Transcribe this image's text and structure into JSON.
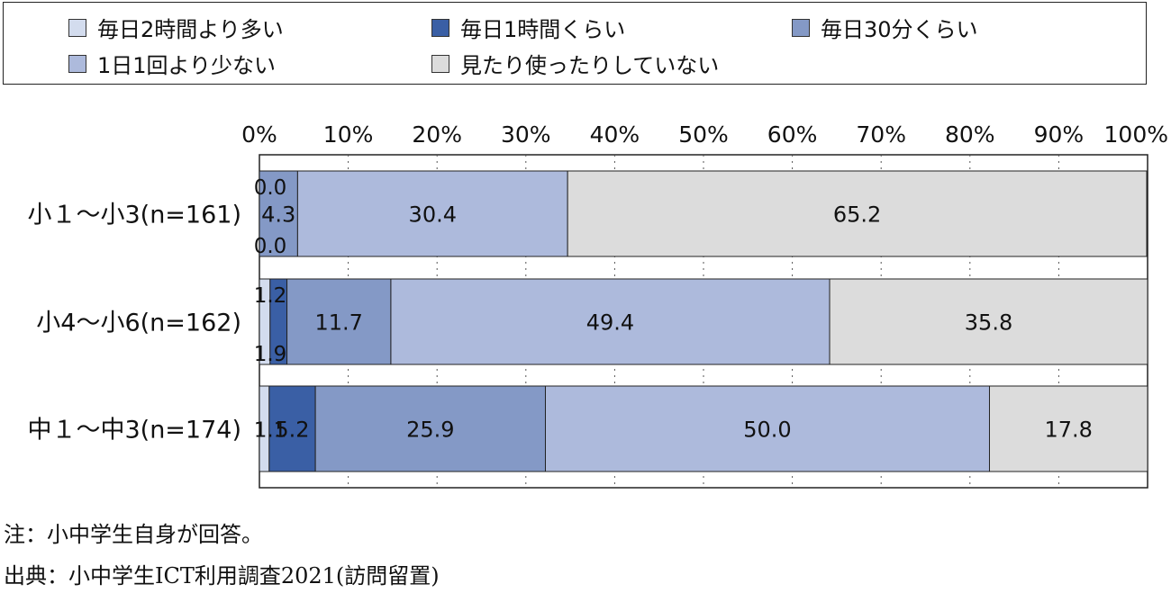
{
  "chart_data": {
    "type": "bar",
    "orientation": "horizontal",
    "stacked": true,
    "xlim": [
      0,
      100
    ],
    "x_ticks": [
      "0%",
      "10%",
      "20%",
      "30%",
      "40%",
      "50%",
      "60%",
      "70%",
      "80%",
      "90%",
      "100%"
    ],
    "categories": [
      "小１～小3(n=161)",
      "小4～小6(n=162)",
      "中１～中3(n=174)"
    ],
    "series": [
      {
        "name": "毎日2時間より多い",
        "color": "#d3dcee",
        "values": [
          0.0,
          1.2,
          1.1
        ],
        "labels": [
          "0.0",
          "1.2",
          "1.1"
        ]
      },
      {
        "name": "毎日1時間くらい",
        "color": "#3a5fa5",
        "values": [
          0.0,
          1.9,
          5.2
        ],
        "labels": [
          "0.0",
          "1.9",
          "5.2"
        ]
      },
      {
        "name": "毎日30分くらい",
        "color": "#8499c6",
        "values": [
          4.3,
          11.7,
          25.9
        ],
        "labels": [
          "4.3",
          "11.7",
          "25.9"
        ]
      },
      {
        "name": "1日1回より少ない",
        "color": "#adbadc",
        "values": [
          30.4,
          49.4,
          50.0
        ],
        "labels": [
          "30.4",
          "49.4",
          "50.0"
        ]
      },
      {
        "name": "見たり使ったりしていない",
        "color": "#dcdcdc",
        "values": [
          65.2,
          35.8,
          17.8
        ],
        "labels": [
          "65.2",
          "35.8",
          "17.8"
        ]
      }
    ],
    "legend": "top",
    "grid": "vertical dotted"
  },
  "notes": {
    "note": "注：小中学生自身が回答。",
    "source": "出典：小中学生ICT利用調査2021(訪問留置)"
  }
}
